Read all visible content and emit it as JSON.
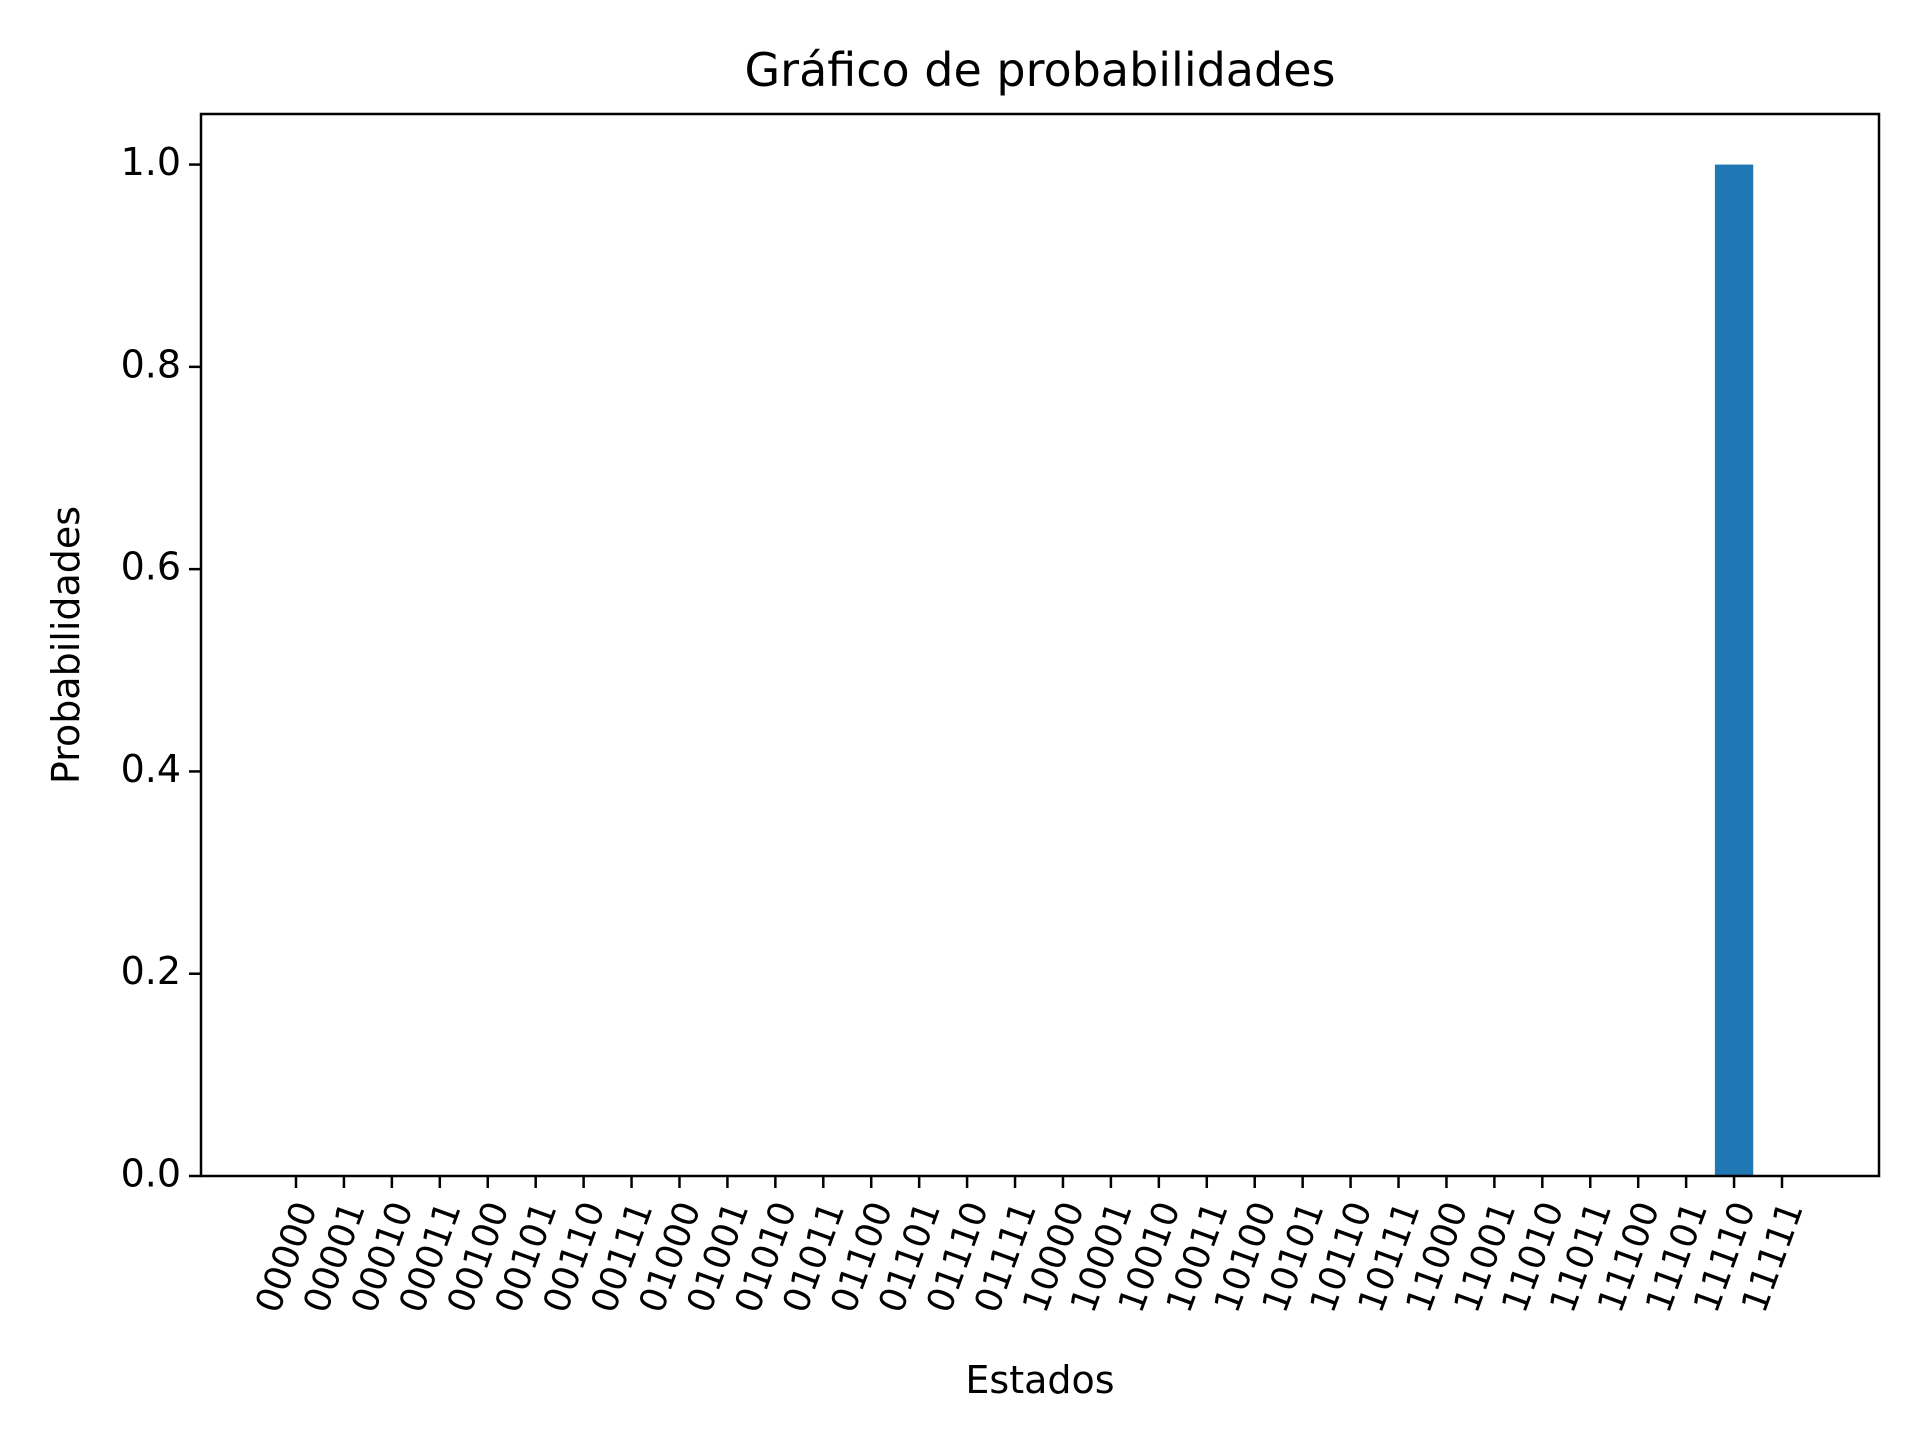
{
  "chart_data": {
    "type": "bar",
    "title": "Gráfico de probabilidades",
    "xlabel": "Estados",
    "ylabel": "Probabilidades",
    "categories": [
      "00000",
      "00001",
      "00010",
      "00011",
      "00100",
      "00101",
      "00110",
      "00111",
      "01000",
      "01001",
      "01010",
      "01011",
      "01100",
      "01101",
      "01110",
      "01111",
      "10000",
      "10001",
      "10010",
      "10011",
      "10100",
      "10101",
      "10110",
      "10111",
      "11000",
      "11001",
      "11010",
      "11011",
      "11100",
      "11101",
      "11110",
      "11111"
    ],
    "values": [
      0,
      0,
      0,
      0,
      0,
      0,
      0,
      0,
      0,
      0,
      0,
      0,
      0,
      0,
      0,
      0,
      0,
      0,
      0,
      0,
      0,
      0,
      0,
      0,
      0,
      0,
      0,
      0,
      0,
      0,
      1.0,
      0
    ],
    "ylim": [
      0,
      1.05
    ],
    "yticks": [
      0.0,
      0.2,
      0.4,
      0.6,
      0.8,
      1.0
    ],
    "ytick_labels": [
      "0.0",
      "0.2",
      "0.4",
      "0.6",
      "0.8",
      "1.0"
    ],
    "bar_color": "#1f77b4",
    "grid": false,
    "xtick_rotation_deg": 70
  }
}
